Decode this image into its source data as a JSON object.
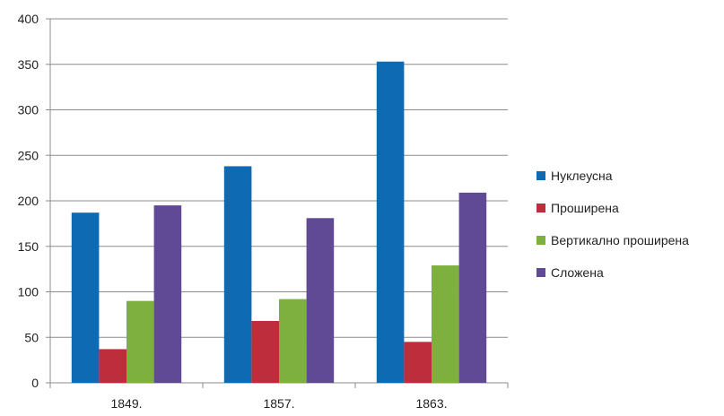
{
  "chart_data": {
    "type": "bar",
    "categories": [
      "1849.",
      "1857.",
      "1863."
    ],
    "series": [
      {
        "name": "Нуклеусна",
        "color": "#0f6ab4",
        "values": [
          187,
          238,
          353
        ]
      },
      {
        "name": "Проширена",
        "color": "#be2d3c",
        "values": [
          37,
          68,
          45
        ]
      },
      {
        "name": "Вертикално проширена",
        "color": "#7db03e",
        "values": [
          90,
          92,
          129
        ]
      },
      {
        "name": "Сложена",
        "color": "#604a96",
        "values": [
          195,
          181,
          209
        ]
      }
    ],
    "ylim": [
      0,
      400
    ],
    "yticks": [
      "0",
      "50",
      "100",
      "150",
      "200",
      "250",
      "300",
      "350",
      "400"
    ],
    "grid": true,
    "legend_position": "right"
  }
}
